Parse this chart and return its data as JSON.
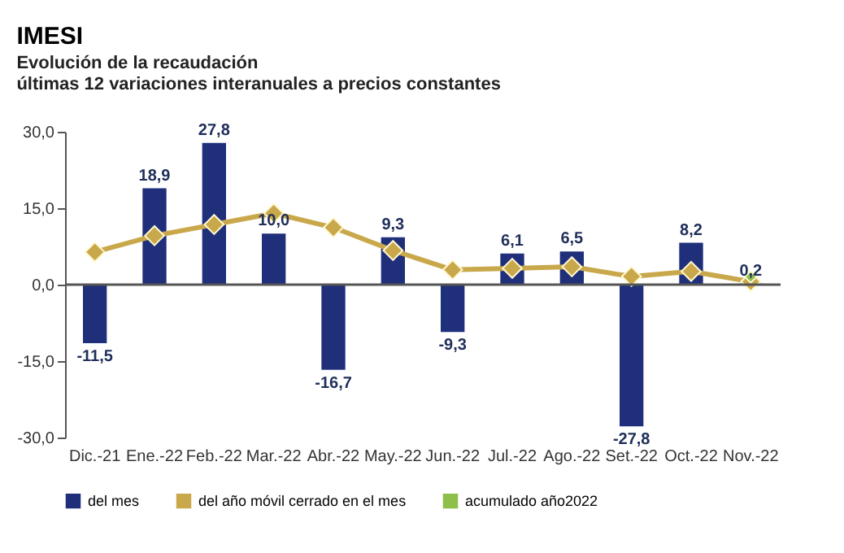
{
  "chart_data": {
    "type": "bar",
    "title": "IMESI",
    "subtitle": "Evolución de la recaudación\núltimas 12 variaciones interanuales a precios constantes",
    "categories": [
      "Dic.-21",
      "Ene.-22",
      "Feb.-22",
      "Mar.-22",
      "Abr.-22",
      "May.-22",
      "Jun.-22",
      "Jul.-22",
      "Ago.-22",
      "Set.-22",
      "Oct.-22",
      "Nov.-22"
    ],
    "series": [
      {
        "name": "del mes",
        "color": "#1f2f7a",
        "values": [
          -11.5,
          18.9,
          27.8,
          10.0,
          -16.7,
          9.3,
          -9.3,
          6.1,
          6.5,
          -27.8,
          8.2,
          0.2
        ],
        "value_labels": [
          "-11,5",
          "18,9",
          "27,8",
          "10,0",
          "-16,7",
          "9,3",
          "-9,3",
          "6,1",
          "6,5",
          "-27,8",
          "8,2",
          "0,2"
        ]
      },
      {
        "name": "del año móvil cerrado en el mes",
        "type": "line",
        "color": "#c9a84c",
        "marker": "diamond",
        "values": [
          6.4,
          9.6,
          11.8,
          14.0,
          11.2,
          6.7,
          2.9,
          3.2,
          3.5,
          1.6,
          2.6,
          0.6
        ]
      },
      {
        "name": "acumulado año2022",
        "type": "line",
        "color": "#8dbf4a",
        "marker": "diamond",
        "values": [
          null,
          null,
          null,
          null,
          null,
          null,
          null,
          null,
          null,
          null,
          null,
          1.5
        ]
      }
    ],
    "ylim": [
      -30,
      30
    ],
    "yticks": [
      {
        "value": -30,
        "label": "-30,0"
      },
      {
        "value": -15,
        "label": "-15,0"
      },
      {
        "value": 0,
        "label": "0,0"
      },
      {
        "value": 15,
        "label": "15,0"
      },
      {
        "value": 30,
        "label": "30,0"
      }
    ],
    "ref_lines": [
      {
        "axis": "y",
        "value": 0,
        "color": "#555555"
      }
    ],
    "legend": "bottom"
  }
}
